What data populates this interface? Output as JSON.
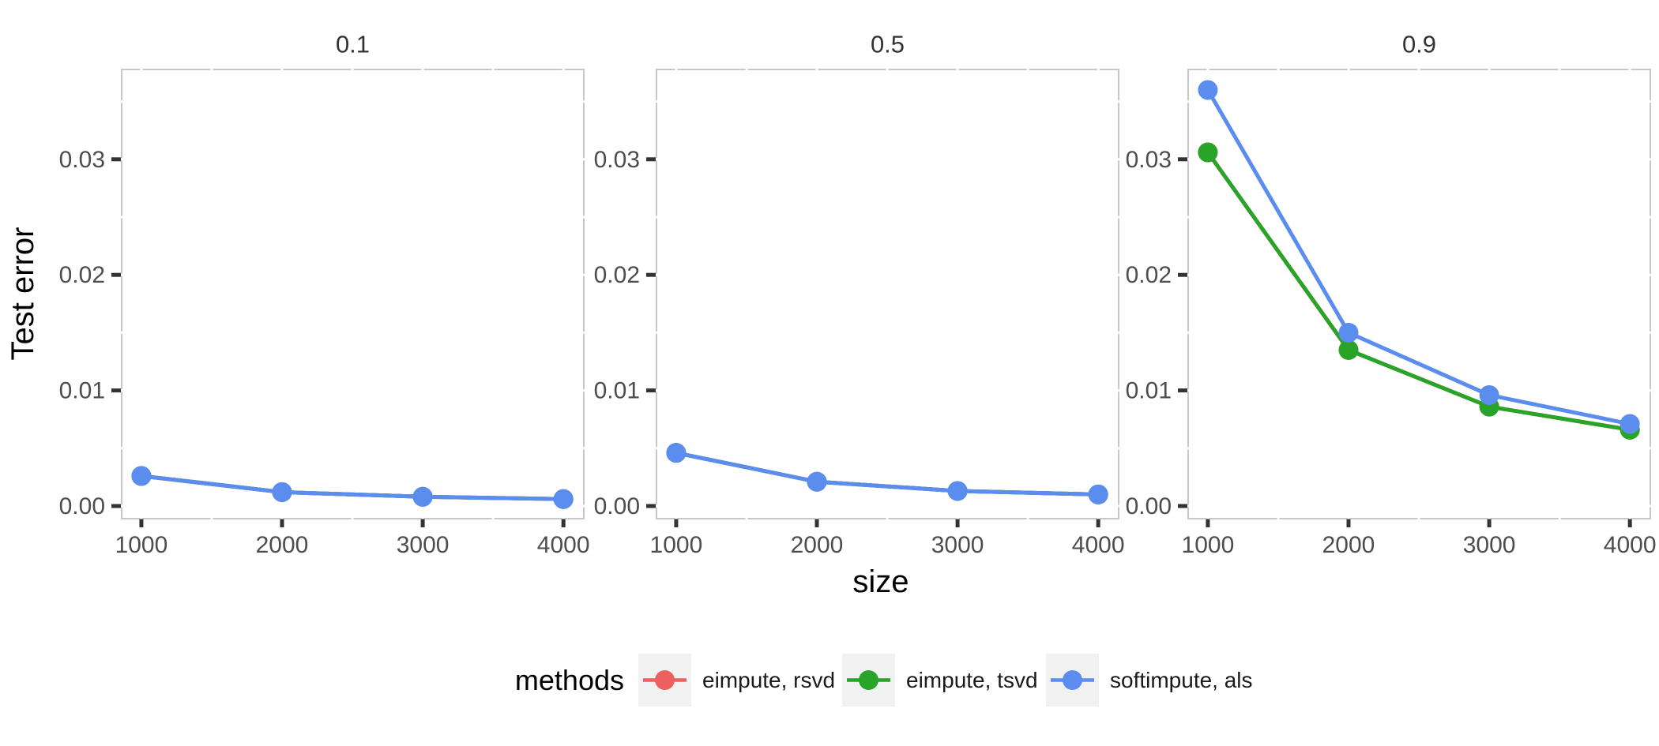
{
  "chart_data": {
    "type": "line",
    "title": "",
    "xlabel": "size",
    "ylabel": "Test error",
    "facet_labels": [
      "0.1",
      "0.5",
      "0.9"
    ],
    "x": [
      1000,
      2000,
      3000,
      4000
    ],
    "xtick_labels": [
      "1000",
      "2000",
      "3000",
      "4000"
    ],
    "yticks": [
      0.0,
      0.01,
      0.02,
      0.03
    ],
    "ytick_labels": [
      "0.00",
      "0.01",
      "0.02",
      "0.03"
    ],
    "ylim": [
      -0.0011,
      0.0378
    ],
    "xlim": [
      860,
      4145
    ],
    "grid": "off",
    "legend_position": "bottom",
    "legend_title": "methods",
    "series": [
      {
        "name": "eimpute, rsvd",
        "color": "#EE5F5F",
        "values_by_facet": [
          [
            0.0026,
            0.0012,
            0.0008,
            0.0006
          ],
          [
            0.0046,
            0.0021,
            0.0013,
            0.001
          ],
          [
            0.0306,
            0.0135,
            0.0086,
            0.0066
          ]
        ],
        "note": "not separately visible; coincides with eimpute, tsvd in every panel"
      },
      {
        "name": "eimpute, tsvd",
        "color": "#28A428",
        "values_by_facet": [
          [
            0.0026,
            0.0012,
            0.0008,
            0.0006
          ],
          [
            0.0046,
            0.0021,
            0.0013,
            0.001
          ],
          [
            0.0306,
            0.0135,
            0.0086,
            0.0066
          ]
        ],
        "note": "hidden behind softimpute, als in panels 0.1 and 0.5; visible in panel 0.9"
      },
      {
        "name": "softimpute, als",
        "color": "#5B8DEE",
        "values_by_facet": [
          [
            0.0026,
            0.0012,
            0.0008,
            0.0006
          ],
          [
            0.0046,
            0.0021,
            0.0013,
            0.001
          ],
          [
            0.036,
            0.015,
            0.0096,
            0.0071
          ]
        ],
        "note": "visible in all panels, drawn on top"
      }
    ]
  },
  "style": {
    "strip_fill": "#D9D9D9",
    "strip_text_color": "#333333",
    "panel_fill": "#FFFFFF",
    "panel_border_color": "#C7C7C7",
    "tick_color": "#333333",
    "tick_label_color": "#4D4D4D",
    "axis_title_color": "#000000",
    "legend_key_fill": "#F1F1F1",
    "legend_text_color": "#1A1A1A"
  }
}
